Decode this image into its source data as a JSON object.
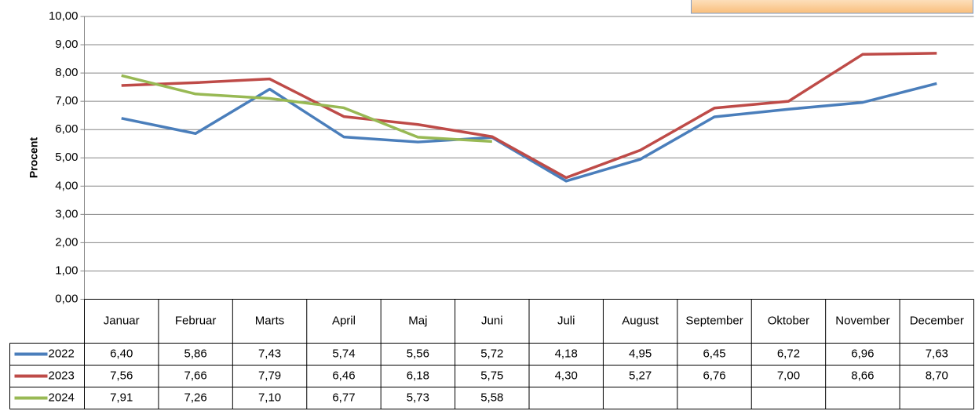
{
  "chart_data": {
    "type": "line",
    "y_label": "Procent",
    "categories": [
      "Januar",
      "Februar",
      "Marts",
      "April",
      "Maj",
      "Juni",
      "Juli",
      "August",
      "September",
      "Oktober",
      "November",
      "December"
    ],
    "series": [
      {
        "name": "2022",
        "color": "#4a7ebb",
        "values": [
          6.4,
          5.86,
          7.43,
          5.74,
          5.56,
          5.72,
          4.18,
          4.95,
          6.45,
          6.72,
          6.96,
          7.63
        ],
        "value_labels": [
          "6,40",
          "5,86",
          "7,43",
          "5,74",
          "5,56",
          "5,72",
          "4,18",
          "4,95",
          "6,45",
          "6,72",
          "6,96",
          "7,63"
        ]
      },
      {
        "name": "2023",
        "color": "#be4b48",
        "values": [
          7.56,
          7.66,
          7.79,
          6.46,
          6.18,
          5.75,
          4.3,
          5.27,
          6.76,
          7.0,
          8.66,
          8.7
        ],
        "value_labels": [
          "7,56",
          "7,66",
          "7,79",
          "6,46",
          "6,18",
          "5,75",
          "4,30",
          "5,27",
          "6,76",
          "7,00",
          "8,66",
          "8,70"
        ]
      },
      {
        "name": "2024",
        "color": "#98b954",
        "values": [
          7.91,
          7.26,
          7.1,
          6.77,
          5.73,
          5.58,
          null,
          null,
          null,
          null,
          null,
          null
        ],
        "value_labels": [
          "7,91",
          "7,26",
          "7,10",
          "6,77",
          "5,73",
          "5,58",
          null,
          null,
          null,
          null,
          null,
          null
        ]
      }
    ],
    "ylim": [
      0,
      10
    ],
    "yticks": [
      {
        "value": 0,
        "label": "0,00"
      },
      {
        "value": 1,
        "label": "1,00"
      },
      {
        "value": 2,
        "label": "2,00"
      },
      {
        "value": 3,
        "label": "3,00"
      },
      {
        "value": 4,
        "label": "4,00"
      },
      {
        "value": 5,
        "label": "5,00"
      },
      {
        "value": 6,
        "label": "6,00"
      },
      {
        "value": 7,
        "label": "7,00"
      },
      {
        "value": 8,
        "label": "8,00"
      },
      {
        "value": 9,
        "label": "9,00"
      },
      {
        "value": 10,
        "label": "10,00"
      }
    ],
    "grid": true
  }
}
